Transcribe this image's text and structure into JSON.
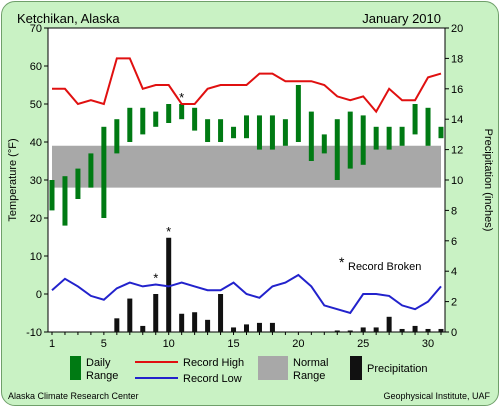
{
  "colors": {
    "background": "#c9f2c4",
    "plot_background": "#ffffff",
    "daily_range": "#007a13",
    "record_high": "#e01010",
    "record_low": "#2222cc",
    "normal_range": "#a8a8a8",
    "precipitation": "#111111",
    "record_marker": "#e01010"
  },
  "chart_data": {
    "type": "bar",
    "title_left": "Ketchikan, Alaska",
    "title_right": "January 2010",
    "ylabel_left": "Temperature (°F)",
    "ylabel_right": "Precipitation (inches)",
    "footer_left": "Alaska Climate Research Center",
    "footer_right": "Geophysical Institute, UAF",
    "record_note": "Record Broken",
    "ylim_left": [
      -10,
      70
    ],
    "yticks_left": [
      -10,
      0,
      10,
      20,
      30,
      40,
      50,
      60,
      70
    ],
    "ylim_right": [
      0,
      20
    ],
    "yticks_right": [
      0,
      2,
      4,
      6,
      8,
      10,
      12,
      14,
      16,
      18,
      20
    ],
    "xlim": [
      1,
      31
    ],
    "xticks": [
      1,
      5,
      10,
      15,
      20,
      25,
      30
    ],
    "days": [
      1,
      2,
      3,
      4,
      5,
      6,
      7,
      8,
      9,
      10,
      11,
      12,
      13,
      14,
      15,
      16,
      17,
      18,
      19,
      20,
      21,
      22,
      23,
      24,
      25,
      26,
      27,
      28,
      29,
      30,
      31
    ],
    "daily_range": [
      [
        22,
        30
      ],
      [
        18,
        31
      ],
      [
        25,
        33
      ],
      [
        28,
        37
      ],
      [
        20,
        44
      ],
      [
        37,
        46
      ],
      [
        40,
        49
      ],
      [
        42,
        49
      ],
      [
        44,
        48
      ],
      [
        45,
        50
      ],
      [
        46,
        50
      ],
      [
        43,
        49
      ],
      [
        40,
        46
      ],
      [
        40,
        46
      ],
      [
        41,
        44
      ],
      [
        41,
        47
      ],
      [
        38,
        47
      ],
      [
        38,
        47
      ],
      [
        39,
        46
      ],
      [
        40,
        55
      ],
      [
        35,
        48
      ],
      [
        37,
        42
      ],
      [
        30,
        46
      ],
      [
        33,
        48
      ],
      [
        34,
        47
      ],
      [
        38,
        44
      ],
      [
        38,
        44
      ],
      [
        39,
        44
      ],
      [
        42,
        50
      ],
      [
        39,
        49
      ],
      [
        41,
        44
      ]
    ],
    "record_high": [
      54,
      54,
      50,
      51,
      50,
      62,
      62,
      54,
      55,
      55,
      50,
      50,
      54,
      55,
      55,
      55,
      58,
      58,
      56,
      56,
      56,
      55,
      52,
      51,
      52,
      48,
      54,
      51,
      51,
      57,
      58
    ],
    "record_low": [
      1,
      4,
      2,
      -0.5,
      -1.5,
      1.5,
      3,
      2,
      2.5,
      2,
      3,
      2,
      1,
      1,
      3,
      0,
      -1,
      2,
      3,
      5,
      2,
      -3,
      -4,
      -5,
      0,
      0,
      -0.5,
      -3,
      -4,
      -2,
      2
    ],
    "normal_range": [
      [
        28,
        39
      ],
      [
        28,
        39
      ],
      [
        28,
        39
      ],
      [
        28,
        39
      ],
      [
        28,
        39
      ],
      [
        28,
        39
      ],
      [
        28,
        39
      ],
      [
        28,
        39
      ],
      [
        28,
        39
      ],
      [
        28,
        39
      ],
      [
        28,
        39
      ],
      [
        28,
        39
      ],
      [
        28,
        39
      ],
      [
        28,
        39
      ],
      [
        28,
        39
      ],
      [
        28,
        39
      ],
      [
        28,
        39
      ],
      [
        28,
        39
      ],
      [
        28,
        39
      ],
      [
        28,
        39
      ],
      [
        28,
        39
      ],
      [
        28,
        39
      ],
      [
        28,
        39
      ],
      [
        28,
        39
      ],
      [
        28,
        39
      ],
      [
        28,
        39
      ],
      [
        28,
        39
      ],
      [
        28,
        39
      ],
      [
        28,
        39
      ],
      [
        28,
        39
      ],
      [
        28,
        39
      ]
    ],
    "precipitation": [
      0,
      0,
      0,
      0,
      0,
      0.9,
      2.2,
      0.4,
      2.5,
      6.2,
      1.2,
      1.3,
      0.8,
      2.5,
      0.3,
      0.5,
      0.6,
      0.6,
      0,
      0,
      0,
      0,
      0.1,
      0.1,
      0.3,
      0.3,
      1.0,
      0.2,
      0.4,
      0.2,
      0.2
    ],
    "records_broken": [
      {
        "series": "record_high",
        "day": 11,
        "value": 50
      },
      {
        "series": "record_low",
        "day": 9,
        "value": 2.5
      },
      {
        "series": "precipitation",
        "day": 10,
        "value": 6.2
      }
    ],
    "legend": [
      {
        "key": "daily_range",
        "label_lines": [
          "Daily",
          "Range"
        ]
      },
      {
        "key": "record_high",
        "label_lines": [
          "Record High"
        ]
      },
      {
        "key": "record_low",
        "label_lines": [
          "Record Low"
        ]
      },
      {
        "key": "normal_range",
        "label_lines": [
          "Normal",
          "Range"
        ]
      },
      {
        "key": "precipitation",
        "label_lines": [
          "Precipitation"
        ]
      }
    ]
  }
}
